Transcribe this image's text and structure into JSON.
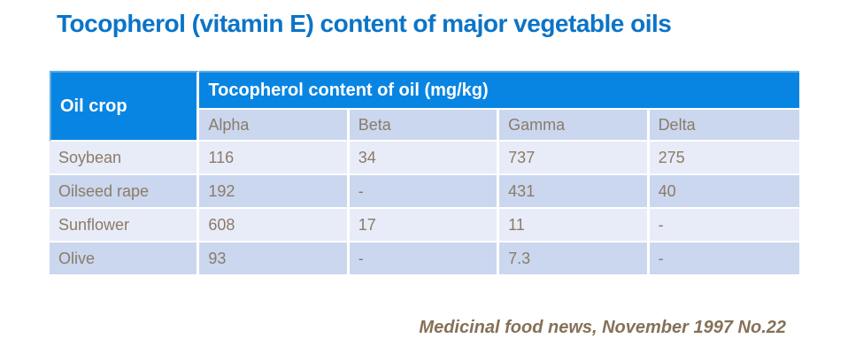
{
  "title": "Tocopherol (vitamin E) content of major vegetable oils",
  "chart_data": {
    "type": "table",
    "title": "Tocopherol (vitamin E) content of major vegetable oils",
    "row_header_label": "Oil crop",
    "column_group_label": "Tocopherol content of oil (mg/kg)",
    "columns": [
      "Alpha",
      "Beta",
      "Gamma",
      "Delta"
    ],
    "rows": [
      {
        "oil_crop": "Soybean",
        "values": [
          "116",
          "34",
          "737",
          "275"
        ]
      },
      {
        "oil_crop": "Oilseed rape",
        "values": [
          "192",
          "-",
          "431",
          "40"
        ]
      },
      {
        "oil_crop": "Sunflower",
        "values": [
          "608",
          "17",
          "11",
          "-"
        ]
      },
      {
        "oil_crop": "Olive",
        "values": [
          "93",
          "-",
          "7.3",
          "-"
        ]
      }
    ],
    "missing_value_marker": "-",
    "source": "Medicinal food news, November 1997 No.22"
  },
  "source_citation": "Medicinal food news, November 1997 No.22",
  "colors": {
    "title_text": "#0B74C8",
    "header_bg": "#0885E3",
    "header_text": "#FFFFFF",
    "header_accent_border": "#5FA9E0",
    "subheader_bg": "#CBD7EF",
    "row_light_bg": "#E8ECF8",
    "row_shaded_bg": "#CBD7EF",
    "table_text": "#8B7B67",
    "source_text": "#857158",
    "page_bg": "#FFFFFF"
  }
}
